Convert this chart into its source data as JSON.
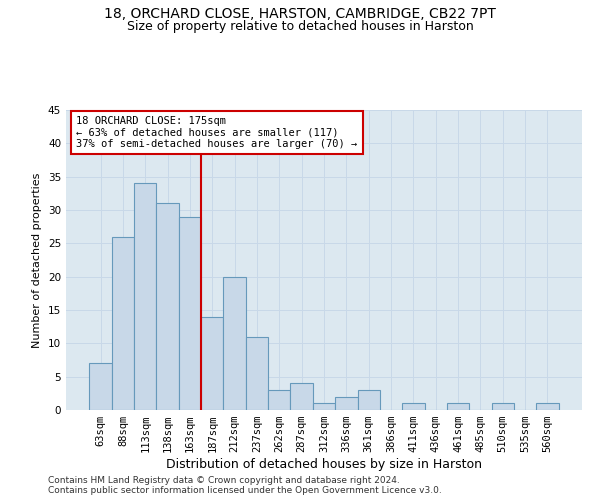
{
  "title_line1": "18, ORCHARD CLOSE, HARSTON, CAMBRIDGE, CB22 7PT",
  "title_line2": "Size of property relative to detached houses in Harston",
  "xlabel": "Distribution of detached houses by size in Harston",
  "ylabel": "Number of detached properties",
  "footer_line1": "Contains HM Land Registry data © Crown copyright and database right 2024.",
  "footer_line2": "Contains public sector information licensed under the Open Government Licence v3.0.",
  "categories": [
    "63sqm",
    "88sqm",
    "113sqm",
    "138sqm",
    "163sqm",
    "187sqm",
    "212sqm",
    "237sqm",
    "262sqm",
    "287sqm",
    "312sqm",
    "336sqm",
    "361sqm",
    "386sqm",
    "411sqm",
    "436sqm",
    "461sqm",
    "485sqm",
    "510sqm",
    "535sqm",
    "560sqm"
  ],
  "values": [
    7,
    26,
    34,
    31,
    29,
    14,
    20,
    11,
    3,
    4,
    1,
    2,
    3,
    0,
    1,
    0,
    1,
    0,
    1,
    0,
    1
  ],
  "bar_color": "#c8d8e8",
  "bar_edge_color": "#6699bb",
  "bar_edge_width": 0.8,
  "property_line_x": 4.5,
  "property_line_color": "#cc0000",
  "annotation_line1": "18 ORCHARD CLOSE: 175sqm",
  "annotation_line2": "← 63% of detached houses are smaller (117)",
  "annotation_line3": "37% of semi-detached houses are larger (70) →",
  "annotation_box_color": "#cc0000",
  "annotation_box_bg": "#ffffff",
  "ylim": [
    0,
    45
  ],
  "yticks": [
    0,
    5,
    10,
    15,
    20,
    25,
    30,
    35,
    40,
    45
  ],
  "grid_color": "#c8d8e8",
  "bg_color": "#dce8f0",
  "title1_fontsize": 10,
  "title2_fontsize": 9,
  "xlabel_fontsize": 9,
  "ylabel_fontsize": 8,
  "tick_fontsize": 7.5,
  "footer_fontsize": 6.5,
  "ann_fontsize": 7.5
}
